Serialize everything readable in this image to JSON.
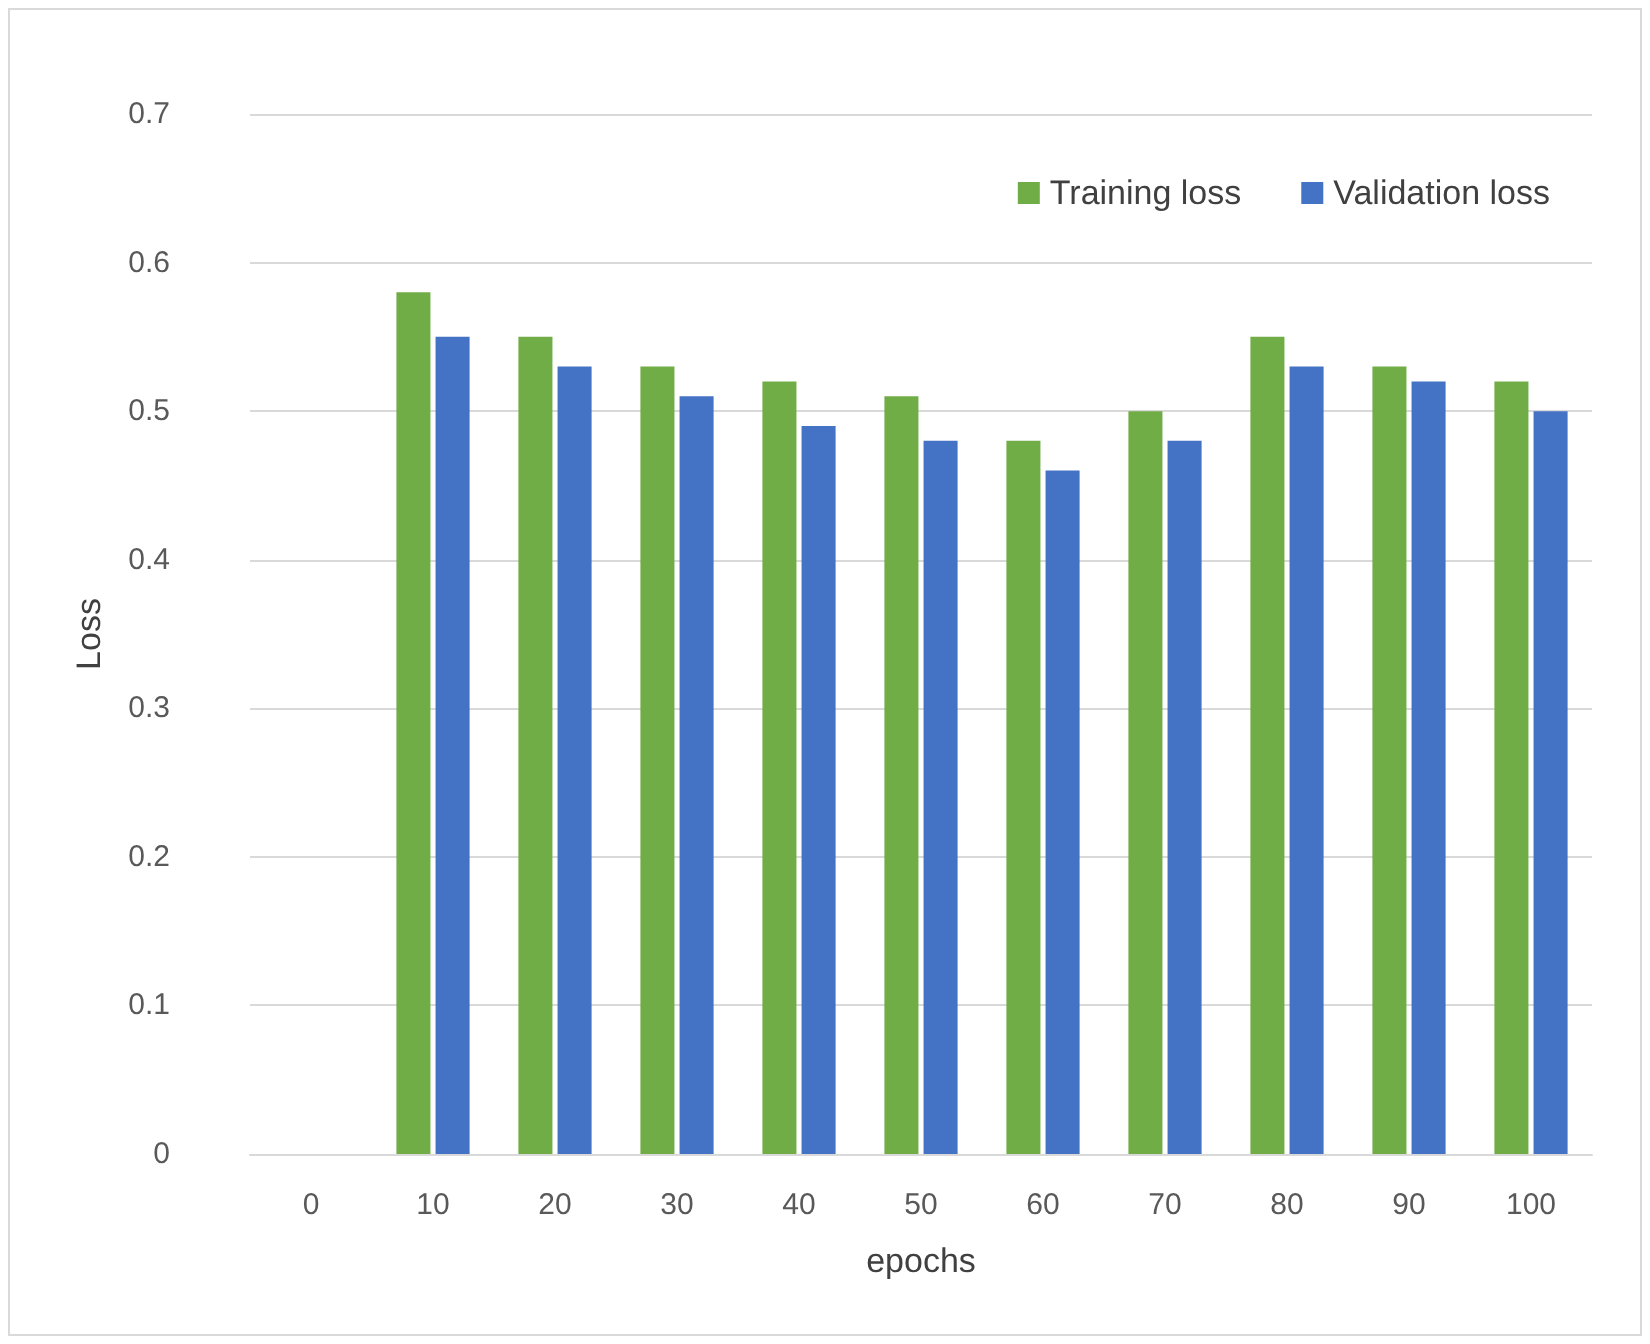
{
  "chart_data": {
    "type": "bar",
    "xlabel": "epochs",
    "ylabel": "Loss",
    "categories": [
      "0",
      "10",
      "20",
      "30",
      "40",
      "50",
      "60",
      "70",
      "80",
      "90",
      "100"
    ],
    "series": [
      {
        "name": "Training loss",
        "color": "#70ad47",
        "values": [
          null,
          0.58,
          0.55,
          0.53,
          0.52,
          0.51,
          0.48,
          0.5,
          0.55,
          0.53,
          0.52
        ]
      },
      {
        "name": "Validation loss",
        "color": "#4472c4",
        "values": [
          null,
          0.55,
          0.53,
          0.51,
          0.49,
          0.48,
          0.46,
          0.48,
          0.53,
          0.52,
          0.5
        ]
      }
    ],
    "ylim": [
      0,
      0.7
    ],
    "yticks": [
      0,
      0.1,
      0.2,
      0.3,
      0.4,
      0.5,
      0.6,
      0.7
    ],
    "grid": "y",
    "legend": "top right"
  }
}
